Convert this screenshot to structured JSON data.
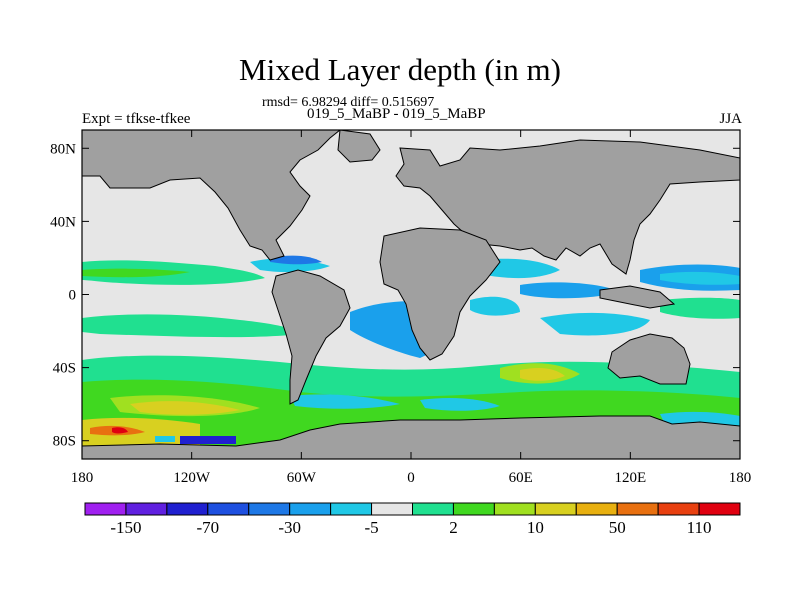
{
  "title": "Mixed Layer depth (in m)",
  "stats_line": "rmsd= 6.98294 diff= 0.515697",
  "comparison_line": "019_5_MaBP - 019_5_MaBP",
  "left_label": "Expt = tfkse-tfkee",
  "right_label": "JJA",
  "map": {
    "lon_ticks": [
      "180",
      "120W",
      "60W",
      "0",
      "60E",
      "120E",
      "180"
    ],
    "lat_ticks": [
      "80N",
      "40N",
      "0",
      "40S",
      "80S"
    ],
    "land_color": "#a0a0a0",
    "ocean_neutral_color": "#e6e6e6"
  },
  "colorbar": {
    "colors": [
      "#a020f0",
      "#6020e0",
      "#2020d0",
      "#1e50e0",
      "#1e78e6",
      "#1aa0ec",
      "#20c8e6",
      "#e6e6e6",
      "#20e090",
      "#40d820",
      "#a0e020",
      "#d8d020",
      "#e8b010",
      "#e87010",
      "#e84010",
      "#e00010"
    ],
    "labels": [
      "-150",
      "-70",
      "-30",
      "-5",
      "2",
      "10",
      "50",
      "110"
    ]
  }
}
